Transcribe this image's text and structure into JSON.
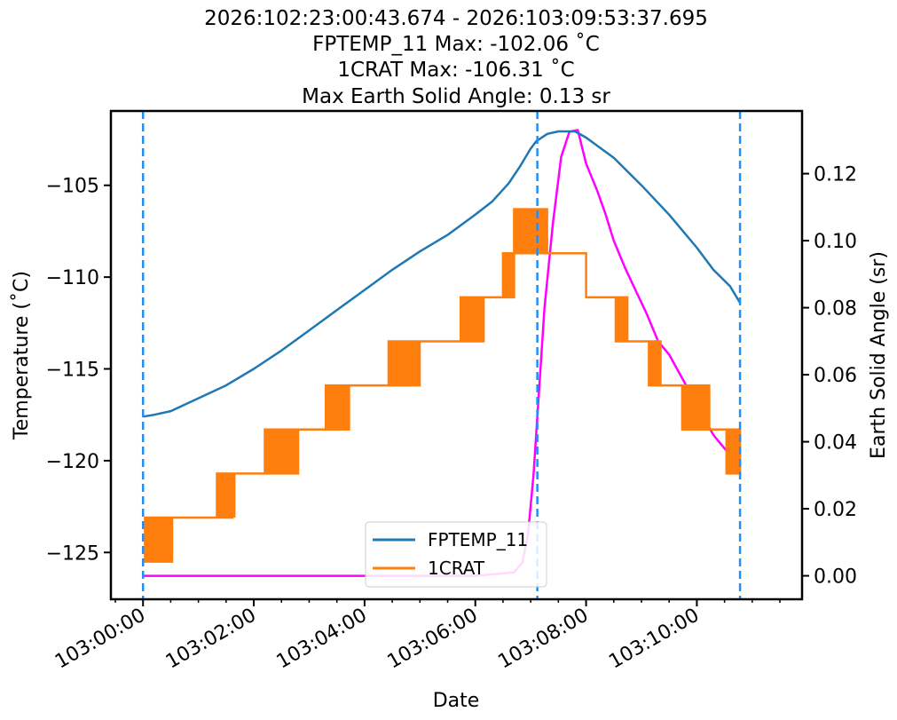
{
  "chart_data": {
    "type": "line",
    "title_lines": [
      "2026:102:23:00:43.674 - 2026:103:09:53:37.695",
      "FPTEMP_11 Max: -102.06 ˚C",
      "1CRAT Max: -106.31 ˚C",
      "Max Earth Solid Angle: 0.13 sr"
    ],
    "xlabel": "Date",
    "ylabel_left": "Temperature (˚C)",
    "ylabel_right": "Earth Solid Angle (sr)",
    "x_unit": "minutes since 103:00:00",
    "xlim": [
      -0.58,
      11.9
    ],
    "ylim_left": [
      -127.55,
      -100.95
    ],
    "ylim_right": [
      -0.007,
      0.1387
    ],
    "x_ticks": [
      {
        "value": 0,
        "label": "103:00:00"
      },
      {
        "value": 2,
        "label": "103:02:00"
      },
      {
        "value": 4,
        "label": "103:04:00"
      },
      {
        "value": 6,
        "label": "103:06:00"
      },
      {
        "value": 8,
        "label": "103:08:00"
      },
      {
        "value": 10,
        "label": "103:10:00"
      }
    ],
    "y_ticks_left": [
      {
        "value": -105,
        "label": "−105"
      },
      {
        "value": -110,
        "label": "−110"
      },
      {
        "value": -115,
        "label": "−115"
      },
      {
        "value": -120,
        "label": "−120"
      },
      {
        "value": -125,
        "label": "−125"
      }
    ],
    "y_ticks_right": [
      {
        "value": 0.0,
        "label": "0.00"
      },
      {
        "value": 0.02,
        "label": "0.02"
      },
      {
        "value": 0.04,
        "label": "0.04"
      },
      {
        "value": 0.06,
        "label": "0.06"
      },
      {
        "value": 0.08,
        "label": "0.08"
      },
      {
        "value": 0.1,
        "label": "0.10"
      },
      {
        "value": 0.12,
        "label": "0.12"
      }
    ],
    "vlines": [
      0.0,
      7.12,
      10.78
    ],
    "series": [
      {
        "name": "FPTEMP_11",
        "axis": "left",
        "color": "#1f77b4",
        "x": [
          0,
          0.2,
          0.5,
          1.0,
          1.5,
          2.0,
          2.5,
          3.0,
          3.5,
          4.0,
          4.5,
          5.0,
          5.5,
          6.0,
          6.3,
          6.6,
          6.8,
          7.0,
          7.1,
          7.3,
          7.5,
          7.8,
          8.0,
          8.5,
          9.0,
          9.5,
          10.0,
          10.3,
          10.6,
          10.78
        ],
        "y": [
          -117.6,
          -117.5,
          -117.3,
          -116.6,
          -115.9,
          -115.0,
          -114.0,
          -112.9,
          -111.8,
          -110.7,
          -109.6,
          -108.6,
          -107.7,
          -106.6,
          -105.9,
          -104.9,
          -104.0,
          -103.0,
          -102.6,
          -102.2,
          -102.06,
          -102.06,
          -102.4,
          -103.5,
          -105.0,
          -106.6,
          -108.4,
          -109.6,
          -110.5,
          -111.4
        ]
      },
      {
        "name": "1CRAT",
        "axis": "left",
        "color": "#ff7f0e",
        "levels": [
          {
            "x0": 0.0,
            "x1": 0.55,
            "low": -125.5,
            "high": -123.1
          },
          {
            "x0": 0.55,
            "x1": 1.3,
            "low": -123.1,
            "high": -123.1
          },
          {
            "x0": 1.3,
            "x1": 1.65,
            "low": -123.1,
            "high": -120.7
          },
          {
            "x0": 1.65,
            "x1": 2.2,
            "low": -120.7,
            "high": -120.7
          },
          {
            "x0": 2.2,
            "x1": 2.8,
            "low": -120.7,
            "high": -118.3
          },
          {
            "x0": 2.8,
            "x1": 3.3,
            "low": -118.3,
            "high": -118.3
          },
          {
            "x0": 3.3,
            "x1": 3.75,
            "low": -118.3,
            "high": -115.9
          },
          {
            "x0": 3.75,
            "x1": 4.4,
            "low": -115.9,
            "high": -115.9
          },
          {
            "x0": 4.4,
            "x1": 5.0,
            "low": -115.9,
            "high": -113.5
          },
          {
            "x0": 5.0,
            "x1": 5.7,
            "low": -113.5,
            "high": -113.5
          },
          {
            "x0": 5.7,
            "x1": 6.15,
            "low": -113.5,
            "high": -111.1
          },
          {
            "x0": 6.15,
            "x1": 6.5,
            "low": -111.1,
            "high": -111.1
          },
          {
            "x0": 6.5,
            "x1": 6.7,
            "low": -111.1,
            "high": -108.7
          },
          {
            "x0": 6.7,
            "x1": 7.3,
            "low": -108.7,
            "high": -106.3
          },
          {
            "x0": 7.3,
            "x1": 7.6,
            "low": -108.7,
            "high": -108.7
          },
          {
            "x0": 7.6,
            "x1": 8.0,
            "low": -108.7,
            "high": -108.7
          },
          {
            "x0": 8.0,
            "x1": 8.5,
            "low": -111.1,
            "high": -111.1
          },
          {
            "x0": 8.5,
            "x1": 8.75,
            "low": -113.5,
            "high": -111.1
          },
          {
            "x0": 8.75,
            "x1": 9.1,
            "low": -113.5,
            "high": -113.5
          },
          {
            "x0": 9.1,
            "x1": 9.35,
            "low": -115.9,
            "high": -113.5
          },
          {
            "x0": 9.35,
            "x1": 9.7,
            "low": -115.9,
            "high": -115.9
          },
          {
            "x0": 9.7,
            "x1": 10.25,
            "low": -118.3,
            "high": -115.9
          },
          {
            "x0": 10.25,
            "x1": 10.5,
            "low": -118.3,
            "high": -118.3
          },
          {
            "x0": 10.5,
            "x1": 10.78,
            "low": -120.7,
            "high": -118.3
          }
        ]
      },
      {
        "name": "Earth Solid Angle",
        "axis": "right",
        "color": "#ff00ff",
        "x": [
          0,
          1,
          2,
          3,
          4,
          5,
          6,
          6.7,
          6.85,
          6.95,
          7.05,
          7.15,
          7.25,
          7.4,
          7.55,
          7.7,
          7.85,
          8.0,
          8.2,
          8.35,
          8.5,
          8.7,
          8.9,
          9.1,
          9.3,
          9.5,
          9.7,
          9.9,
          10.1,
          10.3,
          10.5,
          10.7
        ],
        "y": [
          0,
          0,
          0,
          0,
          0,
          0,
          0,
          0.001,
          0.004,
          0.012,
          0.03,
          0.055,
          0.08,
          0.105,
          0.125,
          0.1325,
          0.133,
          0.123,
          0.115,
          0.108,
          0.1,
          0.092,
          0.085,
          0.078,
          0.07,
          0.066,
          0.06,
          0.054,
          0.048,
          0.042,
          0.038,
          0.034
        ]
      }
    ],
    "legend": {
      "placement": "lower-center",
      "entries": [
        {
          "label": "FPTEMP_11",
          "color": "#1f77b4"
        },
        {
          "label": "1CRAT",
          "color": "#ff7f0e"
        }
      ]
    }
  }
}
